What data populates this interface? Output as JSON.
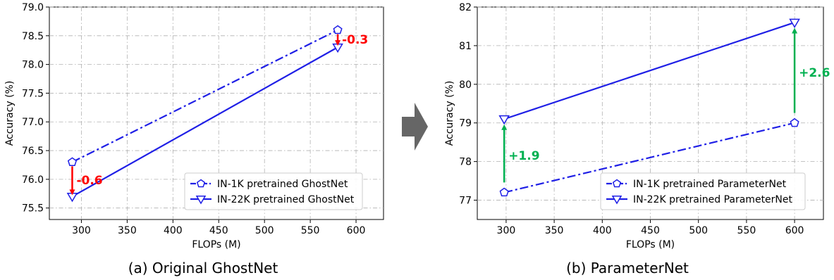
{
  "charts": [
    {
      "type": "line",
      "xlabel": "FLOPs (M)",
      "ylabel": "Accuracy (%)",
      "xlim": [
        265,
        630
      ],
      "ylim": [
        75.3,
        79.0
      ],
      "xticks": [
        "300",
        "350",
        "400",
        "450",
        "500",
        "550",
        "600"
      ],
      "yticks": [
        "75.5",
        "76.0",
        "76.5",
        "77.0",
        "77.5",
        "78.0",
        "78.5",
        "79.0"
      ],
      "series": [
        {
          "name": "IN-1K pretrained GhostNet",
          "x": [
            290,
            580
          ],
          "y": [
            76.3,
            78.6
          ],
          "linestyle": "dashdot",
          "marker": "pentagon"
        },
        {
          "name": "IN-22K pretrained GhostNet",
          "x": [
            290,
            580
          ],
          "y": [
            75.7,
            78.3
          ],
          "linestyle": "solid",
          "marker": "triangle-down"
        }
      ],
      "annotations": [
        {
          "text": "-0.6",
          "color": "#ff0000",
          "arrow_x": 290,
          "arrow_from": 76.3,
          "arrow_to": 75.7
        },
        {
          "text": "-0.3",
          "color": "#ff0000",
          "arrow_x": 580,
          "arrow_from": 78.6,
          "arrow_to": 78.3
        }
      ],
      "legend": "lower-right",
      "grid": true,
      "caption": "(a) Original GhostNet"
    },
    {
      "type": "line",
      "xlabel": "FLOPs (M)",
      "ylabel": "Accuracy (%)",
      "xlim": [
        270,
        630
      ],
      "ylim": [
        76.5,
        82.0
      ],
      "xticks": [
        "300",
        "350",
        "400",
        "450",
        "500",
        "550",
        "600"
      ],
      "yticks": [
        "77",
        "78",
        "79",
        "80",
        "81",
        "82"
      ],
      "series": [
        {
          "name": "IN-1K pretrained ParameterNet",
          "x": [
            298,
            600
          ],
          "y": [
            77.2,
            79.0
          ],
          "linestyle": "dashdot",
          "marker": "pentagon"
        },
        {
          "name": "IN-22K pretrained ParameterNet",
          "x": [
            298,
            600
          ],
          "y": [
            79.1,
            81.6
          ],
          "linestyle": "solid",
          "marker": "triangle-down"
        }
      ],
      "annotations": [
        {
          "text": "+1.9",
          "color": "#00b050",
          "arrow_x": 298,
          "arrow_from": 77.35,
          "arrow_to": 79.0
        },
        {
          "text": "+2.6",
          "color": "#00b050",
          "arrow_x": 600,
          "arrow_from": 79.15,
          "arrow_to": 81.5
        }
      ],
      "legend": "lower-right",
      "grid": true,
      "caption": "(b) ParameterNet"
    }
  ],
  "line_color": "#1f1fe6",
  "arrow_color": "#666666"
}
